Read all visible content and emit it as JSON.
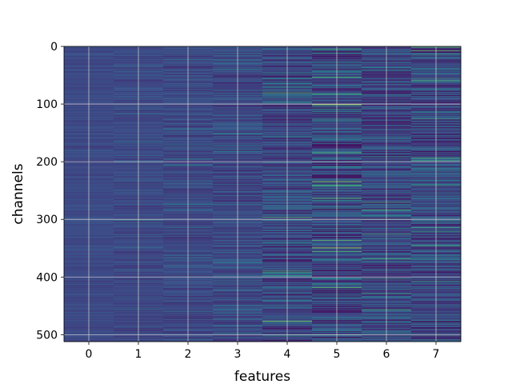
{
  "chart_data": {
    "type": "heatmap",
    "title": "",
    "xlabel": "features",
    "ylabel": "channels",
    "columns": 8,
    "rows": 512,
    "x_ticks": [
      0,
      1,
      2,
      3,
      4,
      5,
      6,
      7
    ],
    "y_ticks": [
      0,
      100,
      200,
      300,
      400,
      500
    ],
    "x_range": [
      -0.5,
      7.5
    ],
    "y_range": [
      0,
      512
    ],
    "y_inverted": true,
    "grid": true,
    "colormap": "viridis",
    "colormap_colors": [
      "#440154",
      "#3b528b",
      "#21918c",
      "#5ec962",
      "#fde725"
    ],
    "column_contrast": [
      0.15,
      0.2,
      0.28,
      0.4,
      0.55,
      0.7,
      0.55,
      0.6
    ],
    "highlights": [
      {
        "feature": 5,
        "channel": 100,
        "value": 0.95
      },
      {
        "feature": 7,
        "channel": 1,
        "value": 0.7
      },
      {
        "feature": 6,
        "channel": 283,
        "value": 0.65
      },
      {
        "feature": 7,
        "channel": 314,
        "value": 0.62
      },
      {
        "feature": 4,
        "channel": 80,
        "value": 0.75
      },
      {
        "feature": 4,
        "channel": 476,
        "value": 0.8
      },
      {
        "feature": 5,
        "channel": 418,
        "value": 0.75
      },
      {
        "feature": 5,
        "channel": 240,
        "value": 0.6
      }
    ]
  }
}
